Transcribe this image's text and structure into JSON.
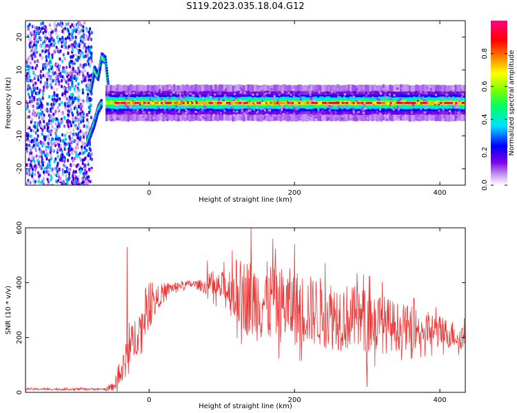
{
  "title": "S119.2023.035.18.04.G12",
  "colors": {
    "snr_line": "#ee3333",
    "axis": "#000000"
  },
  "chart_data": [
    {
      "type": "heatmap",
      "xlabel": "Height of straight line (km)",
      "ylabel": "Frequency (Hz)",
      "xlim": [
        -170,
        435
      ],
      "ylim": [
        -25,
        25
      ],
      "xticks": [
        0,
        200,
        400
      ],
      "yticks": [
        -20,
        -10,
        0,
        10,
        20
      ],
      "colorbar": {
        "label": "Normalized spectral amplitude",
        "range": [
          0.0,
          1.0
        ],
        "ticks": [
          0.0,
          0.2,
          0.4,
          0.6,
          0.8
        ],
        "tick_labels": [
          "0.0",
          "0.2",
          "0.4",
          "0.6",
          "0.8"
        ],
        "colormap": "white-purple-blue-cyan-green-yellow-red-magenta"
      },
      "features": [
        {
          "name": "noise region",
          "x_range": [
            -170,
            -80
          ],
          "freq_range": [
            -25,
            25
          ],
          "amplitude": 0.3
        },
        {
          "name": "upper branch",
          "points": [
            [
              -80,
              4
            ],
            [
              -75,
              10
            ],
            [
              -70,
              8
            ],
            [
              -65,
              14
            ],
            [
              -60,
              13
            ],
            [
              -55,
              3
            ]
          ],
          "amplitude": 0.55
        },
        {
          "name": "lower branch",
          "points": [
            [
              -85,
              -12
            ],
            [
              -80,
              -9
            ],
            [
              -75,
              -6
            ],
            [
              -70,
              -2
            ],
            [
              -65,
              0
            ]
          ],
          "amplitude": 0.5
        },
        {
          "name": "carrier line",
          "x_range": [
            -60,
            435
          ],
          "freq": 0,
          "amplitude": 0.9
        }
      ]
    },
    {
      "type": "line",
      "xlabel": "Height of straight line (km)",
      "ylabel": "SNR (10 * v/v)",
      "xlim": [
        -170,
        435
      ],
      "ylim": [
        0,
        600
      ],
      "xticks": [
        0,
        200,
        400
      ],
      "yticks": [
        0,
        200,
        400,
        600
      ],
      "envelope": {
        "x": [
          -170,
          -60,
          -50,
          -40,
          -30,
          -20,
          0,
          20,
          40,
          60,
          70,
          80,
          100,
          120,
          140,
          160,
          180,
          200,
          220,
          240,
          260,
          280,
          300,
          320,
          340,
          360,
          380,
          400,
          420,
          435
        ],
        "mean": [
          12,
          12,
          20,
          60,
          120,
          200,
          300,
          370,
          390,
          395,
          390,
          385,
          380,
          370,
          340,
          330,
          320,
          310,
          300,
          290,
          280,
          270,
          260,
          250,
          240,
          235,
          230,
          220,
          210,
          200
        ],
        "spread": [
          4,
          4,
          15,
          40,
          80,
          80,
          70,
          30,
          15,
          15,
          20,
          30,
          60,
          120,
          150,
          150,
          140,
          140,
          130,
          130,
          130,
          120,
          120,
          110,
          90,
          80,
          70,
          60,
          50,
          50
        ]
      },
      "peaks": [
        {
          "x": -30,
          "y": 530
        },
        {
          "x": 80,
          "y": 480
        },
        {
          "x": 140,
          "y": 600
        },
        {
          "x": 170,
          "y": 560
        },
        {
          "x": 200,
          "y": 540
        },
        {
          "x": 300,
          "y": 20
        }
      ]
    }
  ]
}
